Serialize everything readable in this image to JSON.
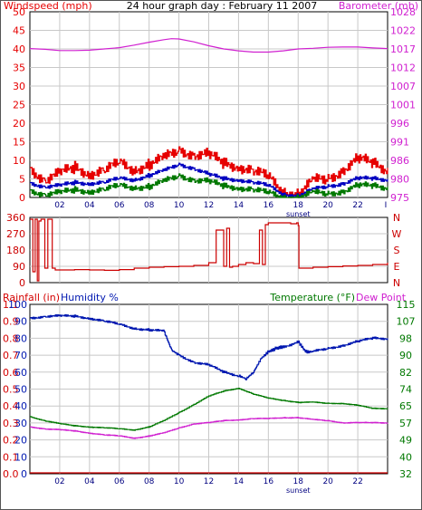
{
  "colors": {
    "wind": "#e60000",
    "wind_gust": "#e60000",
    "wind_avg": "#0000c0",
    "wind_low": "#007800",
    "baro": "#d020d0",
    "dir": "#cc0000",
    "rain": "#d40000",
    "humidity": "#0018b0",
    "temperature": "#007800",
    "dewpoint": "#d020d0",
    "grid": "#c8c8c8",
    "title": "#000000"
  },
  "chart_data": [
    {
      "type": "line",
      "title": "24 hour graph day : February 11 2007",
      "x_tick_labels": [
        "02",
        "04",
        "06",
        "08",
        "10",
        "12",
        "14",
        "16",
        "18",
        "20",
        "22"
      ],
      "x_tick_hours": [
        2,
        4,
        6,
        8,
        10,
        12,
        14,
        16,
        18,
        20,
        22
      ],
      "annotation": "sunset",
      "annotation_hour": 18,
      "xlim_hours": [
        0,
        24
      ],
      "ylabel_left": "Windspeed (mph)",
      "ylabel_right": "Barometer (mb)",
      "ylim_left": [
        0,
        50
      ],
      "ylim_right": [
        975,
        1033
      ],
      "y_ticks_left": [
        0,
        5,
        10,
        15,
        20,
        25,
        30,
        35,
        40,
        45,
        50
      ],
      "y_ticks_right": [
        975,
        980,
        986,
        991,
        996,
        1001,
        1007,
        1012,
        1017,
        1022,
        1028
      ],
      "grid": true,
      "series": [
        {
          "axis": "right",
          "role": "barometer",
          "x": [
            0,
            1,
            2,
            3,
            4,
            5,
            6,
            7,
            8,
            9,
            9.5,
            10,
            11,
            12,
            13,
            14,
            15,
            16,
            17,
            18,
            19,
            20,
            21,
            22,
            23,
            24
          ],
          "values": [
            1021.5,
            1021.3,
            1020.9,
            1020.9,
            1021.0,
            1021.4,
            1021.8,
            1022.6,
            1023.5,
            1024.3,
            1024.6,
            1024.5,
            1023.6,
            1022.4,
            1021.4,
            1020.8,
            1020.4,
            1020.4,
            1020.8,
            1021.4,
            1021.6,
            1021.9,
            1022.0,
            1022.0,
            1021.7,
            1021.5
          ]
        },
        {
          "axis": "left",
          "role": "gust",
          "x": [
            0,
            1,
            2,
            3,
            4,
            5,
            6,
            7,
            8,
            9,
            10,
            11,
            12,
            13,
            14,
            15,
            16,
            17,
            18,
            19,
            20,
            21,
            22,
            23,
            24
          ],
          "values": [
            8,
            5,
            6,
            8,
            7,
            7,
            9,
            8,
            9,
            10,
            13,
            12,
            11,
            9,
            9,
            7,
            5,
            2,
            1,
            4,
            5,
            8,
            10,
            9,
            8
          ]
        },
        {
          "axis": "left",
          "role": "average",
          "x": [
            0,
            1,
            2,
            3,
            4,
            5,
            6,
            7,
            8,
            9,
            10,
            11,
            12,
            13,
            14,
            15,
            16,
            17,
            18,
            19,
            20,
            21,
            22,
            23,
            24
          ],
          "values": [
            4,
            3,
            3,
            4,
            4,
            4,
            5,
            5,
            6,
            7,
            9,
            8,
            6,
            5,
            5,
            4,
            3,
            1,
            0.5,
            2,
            3,
            4,
            5,
            5,
            5
          ]
        },
        {
          "axis": "left",
          "role": "low",
          "x": [
            0,
            1,
            2,
            3,
            4,
            5,
            6,
            7,
            8,
            9,
            10,
            11,
            12,
            13,
            14,
            15,
            16,
            17,
            18,
            19,
            20,
            21,
            22,
            23,
            24
          ],
          "values": [
            2,
            1,
            1,
            2,
            2,
            2,
            3,
            3,
            3,
            4,
            6,
            5,
            4,
            3,
            3,
            2,
            1,
            0.3,
            0,
            1,
            1,
            2,
            3,
            3,
            3
          ]
        }
      ]
    },
    {
      "type": "line",
      "ylabel_left_ticks": [
        "360",
        "270",
        "180",
        "90",
        "0"
      ],
      "ylabel_right_ticks": [
        "N",
        "W",
        "S",
        "E",
        "N"
      ],
      "ylim": [
        0,
        360
      ],
      "x_tick_hours": [
        2,
        4,
        6,
        8,
        10,
        12,
        14,
        16,
        18,
        20,
        22
      ],
      "grid": true,
      "series": [
        {
          "role": "wind_direction",
          "x": [
            0,
            0.2,
            0.35,
            0.5,
            0.6,
            0.75,
            1.0,
            1.2,
            1.5,
            1.7,
            2,
            3,
            4,
            5,
            6,
            7,
            8,
            9,
            10,
            11,
            12,
            12.5,
            13,
            13.2,
            13.4,
            13.6,
            14,
            14.5,
            15,
            15.4,
            15.6,
            15.8,
            16,
            17,
            17.5,
            17.9,
            18,
            18.05,
            18.2,
            19,
            20,
            21,
            22,
            23,
            24
          ],
          "values": [
            350,
            60,
            350,
            10,
            340,
            350,
            80,
            350,
            80,
            70,
            70,
            72,
            70,
            68,
            72,
            80,
            85,
            88,
            90,
            95,
            110,
            290,
            90,
            300,
            85,
            90,
            100,
            110,
            105,
            290,
            100,
            320,
            330,
            330,
            325,
            330,
            315,
            80,
            80,
            85,
            88,
            92,
            95,
            100,
            110
          ]
        }
      ]
    },
    {
      "type": "line",
      "ylabel_rain": "Rainfall (in)",
      "ylabel_humidity": "Humidity %",
      "ylabel_temperature": "Temperature (°F)",
      "ylabel_dewpoint": "Dew Point",
      "rain_ticks": [
        "0.0",
        "0.1",
        "0.2",
        "0.3",
        "0.4",
        "0.5",
        "0.6",
        "0.7",
        "0.8",
        "0.9",
        "1.1"
      ],
      "humidity_ticks": [
        "0",
        "10",
        "20",
        "30",
        "40",
        "50",
        "60",
        "70",
        "80",
        "90",
        "100"
      ],
      "temp_ticks": [
        "32",
        "40",
        "49",
        "57",
        "65",
        "74",
        "82",
        "90",
        "98",
        "107",
        "115"
      ],
      "humidity_ylim": [
        0,
        100
      ],
      "temp_ylim": [
        32,
        115
      ],
      "x_tick_labels": [
        "02",
        "04",
        "06",
        "08",
        "10",
        "12",
        "14",
        "16",
        "18",
        "20",
        "22"
      ],
      "x_tick_hours": [
        2,
        4,
        6,
        8,
        10,
        12,
        14,
        16,
        18,
        20,
        22
      ],
      "annotation": "sunset",
      "annotation_hour": 18,
      "grid": true,
      "series": [
        {
          "axis": "humidity",
          "role": "humidity",
          "x": [
            0,
            1,
            2,
            3,
            4,
            5,
            6,
            7,
            8,
            9,
            9.5,
            10,
            11,
            12,
            13,
            14,
            14.5,
            15,
            15.5,
            16,
            16.5,
            17,
            18,
            18.5,
            19,
            20,
            21,
            22,
            23,
            24
          ],
          "values": [
            92,
            93,
            93,
            93,
            92,
            90,
            88,
            86,
            85,
            84,
            73,
            70,
            66,
            64,
            60,
            58,
            56,
            60,
            68,
            72,
            74,
            75,
            78,
            72,
            72,
            74,
            76,
            78,
            80,
            80
          ]
        },
        {
          "axis": "temperature",
          "role": "temperature",
          "x": [
            0,
            1,
            2,
            3,
            4,
            5,
            6,
            7,
            8,
            9,
            10,
            11,
            12,
            13,
            14,
            15,
            16,
            17,
            18,
            19,
            20,
            21,
            22,
            23,
            24
          ],
          "values": [
            60,
            58,
            56.5,
            55.5,
            55,
            54.5,
            54,
            53.5,
            55,
            58,
            62,
            66,
            70,
            72.5,
            74,
            71,
            69,
            68,
            67,
            67,
            66.5,
            66.5,
            65.5,
            64,
            64
          ]
        },
        {
          "axis": "temperature",
          "role": "dewpoint",
          "x": [
            0,
            1,
            2,
            3,
            4,
            5,
            6,
            7,
            8,
            9,
            10,
            11,
            12,
            13,
            14,
            15,
            16,
            17,
            18,
            19,
            20,
            21,
            22,
            23,
            24
          ],
          "values": [
            55,
            54,
            53.5,
            53,
            52,
            51,
            50.5,
            49.5,
            50.5,
            52,
            54.5,
            56.5,
            57,
            58,
            58.5,
            59,
            59,
            59.5,
            59.5,
            58.5,
            58,
            57,
            57,
            57,
            57
          ]
        },
        {
          "axis": "rain",
          "role": "rainfall",
          "x": [
            0,
            24
          ],
          "values": [
            0,
            0
          ]
        }
      ]
    }
  ]
}
